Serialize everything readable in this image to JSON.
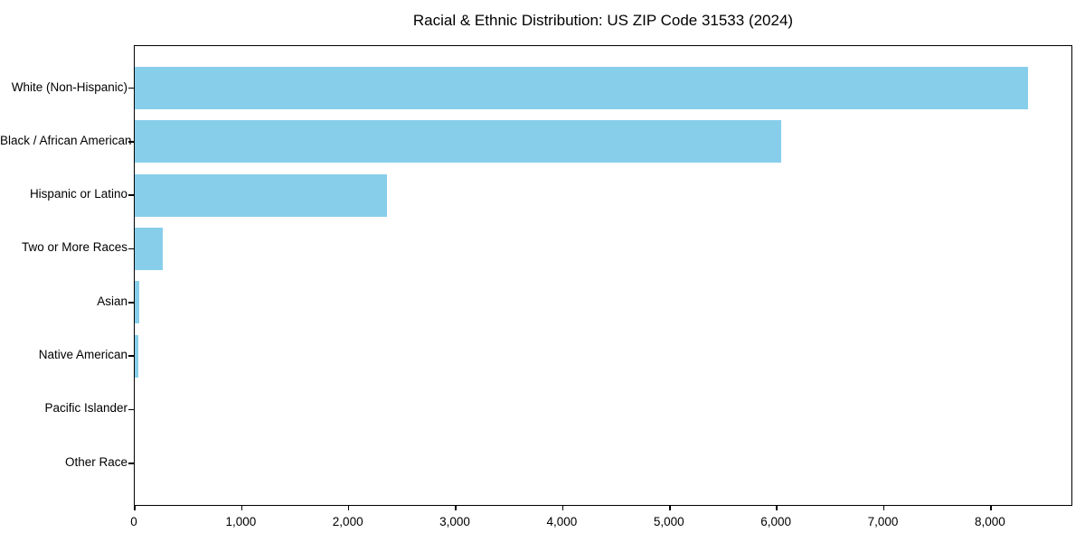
{
  "chart_data": {
    "type": "bar",
    "orientation": "horizontal",
    "title": "Racial & Ethnic Distribution: US ZIP Code 31533 (2024)",
    "categories": [
      "White (Non-Hispanic)",
      "Black / African American",
      "Hispanic or Latino",
      "Two or More Races",
      "Asian",
      "Native American",
      "Pacific Islander",
      "Other Race"
    ],
    "values": [
      8350,
      6040,
      2360,
      260,
      40,
      35,
      0,
      0
    ],
    "xlabel": "",
    "ylabel": "",
    "xlim": [
      0,
      8770
    ],
    "x_ticks": [
      0,
      1000,
      2000,
      3000,
      4000,
      5000,
      6000,
      7000,
      8000
    ],
    "x_tick_labels": [
      "0",
      "1,000",
      "2,000",
      "3,000",
      "4,000",
      "5,000",
      "6,000",
      "7,000",
      "8,000"
    ],
    "bar_color": "#87CEEB",
    "background_color": "#FFFFFF",
    "axis_color": "#000000",
    "grid": false,
    "legend": "none"
  }
}
